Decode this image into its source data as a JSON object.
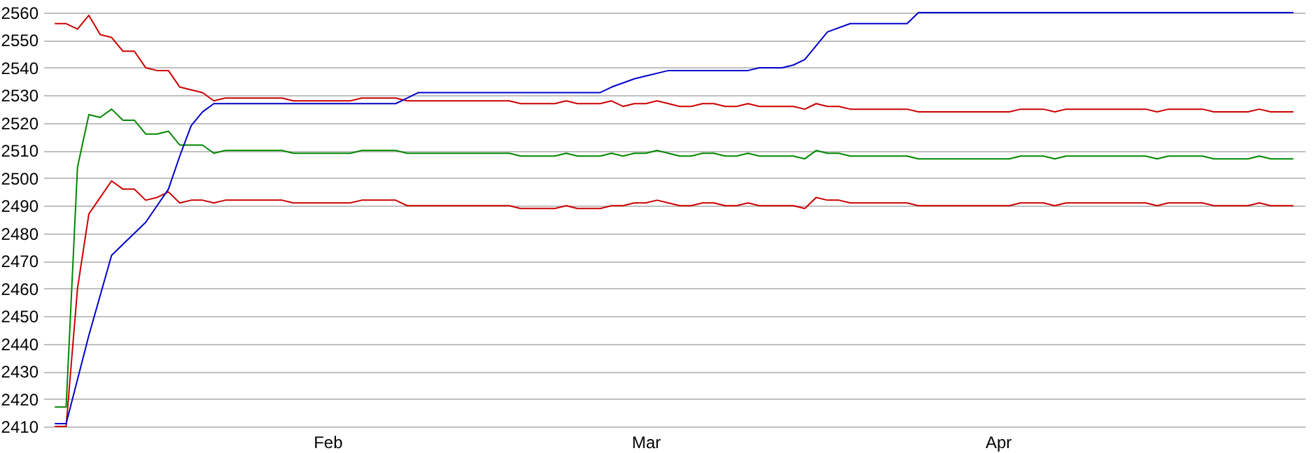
{
  "chart_data": {
    "type": "line",
    "x": [
      "--01-08",
      "--01-09",
      "--01-10",
      "--01-11",
      "--01-12",
      "--01-13",
      "--01-14",
      "--01-15",
      "--01-16",
      "--01-17",
      "--01-18",
      "--01-19",
      "--01-20",
      "--01-21",
      "--01-22",
      "--01-23",
      "--01-28",
      "--01-29",
      "--02-03",
      "--02-04",
      "--02-07",
      "--02-08",
      "--02-17",
      "--02-18",
      "--02-21",
      "--02-22",
      "--02-23",
      "--02-25",
      "--02-26",
      "--02-27",
      "--02-28",
      "--03-01",
      "--03-02",
      "--03-03",
      "--03-04",
      "--03-05",
      "--03-06",
      "--03-07",
      "--03-08",
      "--03-09",
      "--03-10",
      "--03-11",
      "--03-14",
      "--03-15",
      "--03-16",
      "--03-17",
      "--03-18",
      "--03-19",
      "--03-24",
      "--03-25",
      "--04-02",
      "--04-03",
      "--04-05",
      "--04-06",
      "--04-07",
      "--04-14",
      "--04-15",
      "--04-16",
      "--04-19",
      "--04-20",
      "--04-23",
      "--04-24",
      "--04-25",
      "--04-27"
    ],
    "series": [
      {
        "color": "#cc0000",
        "values": [
          2556,
          2556,
          2554,
          2559,
          2552,
          2551,
          2546,
          2546,
          2540,
          2539,
          2539,
          2533,
          2532,
          2531,
          2528,
          2529,
          2529,
          2528,
          2528,
          2529,
          2529,
          2528,
          2528,
          2527,
          2527,
          2528,
          2527,
          2527,
          2528,
          2526,
          2527,
          2527,
          2528,
          2527,
          2526,
          2526,
          2527,
          2527,
          2526,
          2526,
          2527,
          2526,
          2526,
          2525,
          2527,
          2526,
          2526,
          2525,
          2525,
          2524,
          2524,
          2525,
          2525,
          2524,
          2525,
          2525,
          2524,
          2525,
          2525,
          2524,
          2524,
          2525,
          2524,
          2524
        ]
      },
      {
        "color": "#008800",
        "values": [
          2417,
          2417,
          2504,
          2523,
          2522,
          2525,
          2521,
          2521,
          2516,
          2516,
          2517,
          2512,
          2512,
          2512,
          2509,
          2510,
          2510,
          2509,
          2509,
          2510,
          2510,
          2509,
          2509,
          2508,
          2508,
          2509,
          2508,
          2508,
          2509,
          2508,
          2509,
          2509,
          2510,
          2509,
          2508,
          2508,
          2509,
          2509,
          2508,
          2508,
          2509,
          2508,
          2508,
          2507,
          2510,
          2509,
          2509,
          2508,
          2508,
          2507,
          2507,
          2508,
          2508,
          2507,
          2508,
          2508,
          2507,
          2508,
          2508,
          2507,
          2507,
          2508,
          2507,
          2507
        ]
      },
      {
        "color": "#cc0000",
        "values": [
          2410,
          2410,
          2460,
          2487,
          2493,
          2499,
          2496,
          2496,
          2492,
          2493,
          2495,
          2491,
          2492,
          2492,
          2491,
          2492,
          2492,
          2491,
          2491,
          2492,
          2492,
          2490,
          2490,
          2489,
          2489,
          2490,
          2489,
          2489,
          2490,
          2490,
          2491,
          2491,
          2492,
          2491,
          2490,
          2490,
          2491,
          2491,
          2490,
          2490,
          2491,
          2490,
          2490,
          2489,
          2493,
          2492,
          2492,
          2491,
          2491,
          2490,
          2490,
          2491,
          2491,
          2490,
          2491,
          2491,
          2490,
          2491,
          2491,
          2490,
          2490,
          2491,
          2490,
          2490
        ]
      },
      {
        "color": "#0000cc",
        "x": [
          "--01-08",
          "--01-09",
          "--01-11",
          "--01-13",
          "--01-16",
          "--01-18",
          "--01-19",
          "--01-20",
          "--01-21",
          "--01-22",
          "--02-07",
          "--02-08",
          "--02-09",
          "--02-25",
          "--02-26",
          "--02-28",
          "--03-01",
          "--03-03",
          "--03-10",
          "--03-11",
          "--03-13",
          "--03-14",
          "--03-15",
          "--03-17",
          "--03-19",
          "--03-24",
          "--03-25",
          "--04-27"
        ],
        "values": [
          2411,
          2411,
          2443,
          2472,
          2484,
          2496,
          2508,
          2519,
          2524,
          2527,
          2527,
          2529,
          2531,
          2531,
          2533,
          2536,
          2537,
          2539,
          2539,
          2540,
          2540,
          2541,
          2543,
          2553,
          2556,
          2556,
          2560,
          2560
        ]
      }
    ],
    "xlim": [
      "--01-07",
      "--04-28"
    ],
    "xticks": [
      {
        "value": "--02-01",
        "label": "Feb"
      },
      {
        "value": "--03-01",
        "label": "Mar"
      },
      {
        "value": "--04-01",
        "label": "Apr"
      }
    ],
    "ylim": [
      2410,
      2560
    ],
    "yticks": [
      2410,
      2420,
      2430,
      2440,
      2450,
      2460,
      2470,
      2480,
      2490,
      2500,
      2510,
      2520,
      2530,
      2540,
      2550,
      2560
    ],
    "grid": "y"
  }
}
